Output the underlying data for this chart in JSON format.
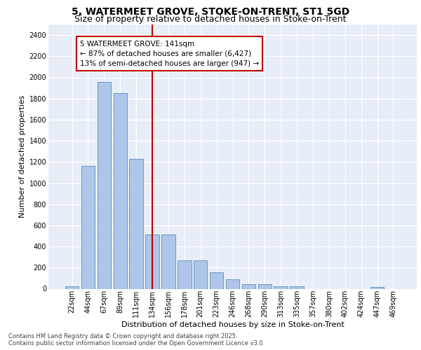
{
  "title_line1": "5, WATERMEET GROVE, STOKE-ON-TRENT, ST1 5GD",
  "title_line2": "Size of property relative to detached houses in Stoke-on-Trent",
  "xlabel": "Distribution of detached houses by size in Stoke-on-Trent",
  "ylabel": "Number of detached properties",
  "categories": [
    "22sqm",
    "44sqm",
    "67sqm",
    "89sqm",
    "111sqm",
    "134sqm",
    "156sqm",
    "178sqm",
    "201sqm",
    "223sqm",
    "246sqm",
    "268sqm",
    "290sqm",
    "313sqm",
    "335sqm",
    "357sqm",
    "380sqm",
    "402sqm",
    "424sqm",
    "447sqm",
    "469sqm"
  ],
  "values": [
    25,
    1160,
    1960,
    1850,
    1230,
    515,
    515,
    270,
    270,
    155,
    90,
    45,
    40,
    25,
    20,
    0,
    0,
    0,
    0,
    15,
    0
  ],
  "highlight_index": 5,
  "highlight_color": "#c00000",
  "bar_color": "#aec6e8",
  "bar_edge_color": "#6699cc",
  "background_color": "#e8eef8",
  "annotation_text": "5 WATERMEET GROVE: 141sqm\n← 87% of detached houses are smaller (6,427)\n13% of semi-detached houses are larger (947) →",
  "ylim": [
    0,
    2500
  ],
  "yticks": [
    0,
    200,
    400,
    600,
    800,
    1000,
    1200,
    1400,
    1600,
    1800,
    2000,
    2200,
    2400
  ],
  "footer_line1": "Contains HM Land Registry data © Crown copyright and database right 2025.",
  "footer_line2": "Contains public sector information licensed under the Open Government Licence v3.0.",
  "title_fontsize": 10,
  "subtitle_fontsize": 9,
  "axis_label_fontsize": 8,
  "tick_fontsize": 7,
  "annotation_fontsize": 7.5,
  "footer_fontsize": 6
}
